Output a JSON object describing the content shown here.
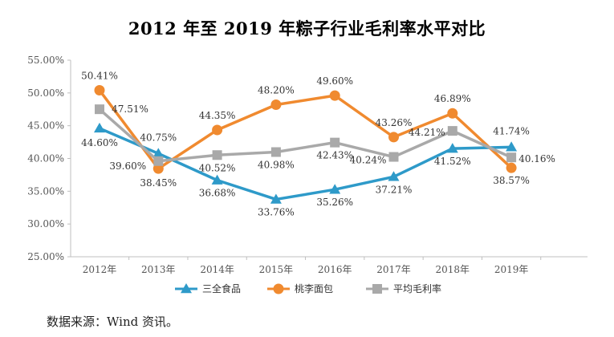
{
  "chart_data": {
    "type": "line",
    "title": "2012 年至 2019 年粽子行业毛利率水平对比",
    "categories": [
      "2012年",
      "2013年",
      "2014年",
      "2015年",
      "2016年",
      "2017年",
      "2018年",
      "2019年"
    ],
    "ylim": [
      25,
      55
    ],
    "yticks": [
      "25.00%",
      "30.00%",
      "35.00%",
      "40.00%",
      "45.00%",
      "50.00%",
      "55.00%"
    ],
    "grid": false,
    "legend_position": "bottom",
    "series": [
      {
        "name": "三全食品",
        "marker": "triangle",
        "color": "#2e9ac9",
        "values": [
          44.6,
          40.75,
          36.68,
          33.76,
          35.26,
          37.21,
          41.52,
          41.74
        ],
        "labels": [
          "44.60%",
          "40.75%",
          "36.68%",
          "33.76%",
          "35.26%",
          "37.21%",
          "41.52%",
          "41.74%"
        ]
      },
      {
        "name": "桃李面包",
        "marker": "circle",
        "color": "#f08a2f",
        "values": [
          50.41,
          38.45,
          44.35,
          48.2,
          49.6,
          43.26,
          46.89,
          38.57
        ],
        "labels": [
          "50.41%",
          "38.45%",
          "44.35%",
          "48.20%",
          "49.60%",
          "43.26%",
          "46.89%",
          "38.57%"
        ]
      },
      {
        "name": "平均毛利率",
        "marker": "square",
        "color": "#a9a9a9",
        "values": [
          47.51,
          39.6,
          40.52,
          40.98,
          42.43,
          40.24,
          44.21,
          40.16
        ],
        "labels": [
          "47.51%",
          "39.60%",
          "40.52%",
          "40.98%",
          "42.43%",
          "40.24%",
          "44.21%",
          "40.16%"
        ]
      }
    ]
  },
  "footer": {
    "source": "数据来源：Wind 资讯。"
  }
}
